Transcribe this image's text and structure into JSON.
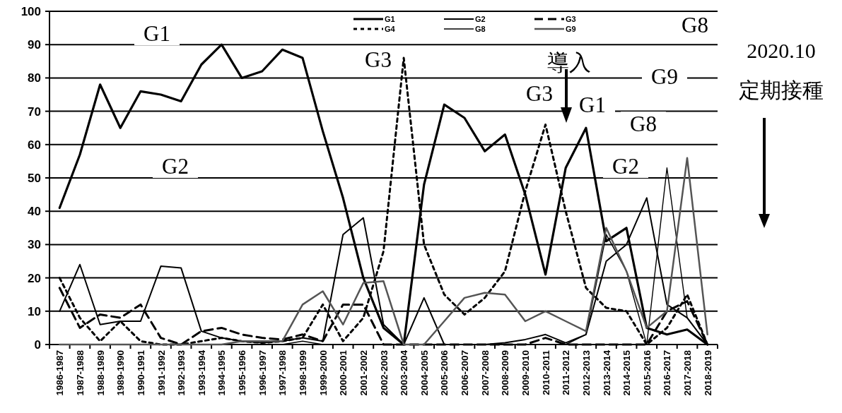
{
  "chart_data": {
    "type": "line",
    "categories": [
      "1986-1987",
      "1987-1988",
      "1988-1989",
      "1989-1990",
      "1990-1991",
      "1991-1992",
      "1992-1993",
      "1993-1994",
      "1994-1995",
      "1995-1996",
      "1996-1997",
      "1997-1998",
      "1998-1999",
      "1999-2000",
      "2000-2001",
      "2001-2002",
      "2002-2003",
      "2003-2004",
      "2004-2005",
      "2005-2006",
      "2006-2007",
      "2007-2008",
      "2008-2009",
      "2009-2010",
      "2010-2011",
      "2011-2012",
      "2012-2013",
      "2013-2014",
      "2014-2015",
      "2015-2016",
      "2016-2017",
      "2017-2018",
      "2018-2019"
    ],
    "ylim": [
      0,
      100
    ],
    "yticks": [
      0,
      10,
      20,
      30,
      40,
      50,
      60,
      70,
      80,
      90,
      100
    ],
    "grid": "y",
    "legend": "top",
    "series": [
      {
        "name": "G1",
        "color": "#000000",
        "line_style": "solid",
        "values": [
          41,
          57,
          78,
          65,
          76,
          75,
          73,
          84,
          90,
          80,
          82,
          88.5,
          86,
          64,
          44,
          20,
          5,
          0,
          48,
          72,
          68,
          58,
          63,
          45,
          21,
          53,
          65,
          31,
          35,
          5,
          3,
          4.5,
          0
        ]
      },
      {
        "name": "G2",
        "color": "#000000",
        "line_style": "solid",
        "values": [
          10,
          24,
          6,
          7,
          7,
          23.5,
          23,
          4,
          2,
          1,
          0.5,
          1,
          2,
          1,
          33,
          38,
          6,
          0,
          14,
          0,
          0,
          0,
          0.5,
          1.5,
          3,
          0.5,
          3,
          25,
          30,
          44,
          12,
          8,
          0
        ]
      },
      {
        "name": "G3",
        "color": "#000000",
        "line_style": "dashed",
        "values": [
          17,
          5,
          9,
          8,
          12,
          2,
          0,
          4,
          5,
          3,
          2,
          1.5,
          3,
          1,
          12,
          12,
          0,
          0,
          0,
          0,
          0,
          0,
          0,
          0,
          2,
          0,
          0,
          0,
          0,
          0,
          10,
          13,
          0
        ]
      },
      {
        "name": "G4",
        "color": "#000000",
        "line_style": "dotted",
        "values": [
          20,
          8,
          1,
          7,
          1,
          0,
          0,
          1,
          2,
          1,
          0.5,
          1,
          2,
          12,
          1,
          8,
          28,
          86,
          30,
          15,
          9,
          14,
          22,
          46,
          66,
          40,
          17,
          11,
          10,
          0,
          5,
          15,
          0
        ]
      },
      {
        "name": "G8",
        "color": "#000000",
        "line_style": "solid",
        "values": [
          0,
          0,
          0,
          0,
          0,
          0,
          0,
          0,
          0,
          0,
          0,
          0,
          1,
          0,
          0,
          0,
          0,
          0,
          0,
          0,
          0,
          0,
          0,
          0,
          0,
          0,
          3,
          33,
          22,
          0,
          53,
          8,
          0
        ]
      },
      {
        "name": "G9",
        "color": "#555555",
        "line_style": "solid",
        "values": [
          0,
          0,
          0,
          0,
          0,
          0,
          0,
          0,
          0,
          1,
          1,
          1,
          12,
          16,
          6,
          18.5,
          19,
          0,
          0,
          7,
          14,
          15.5,
          15,
          7,
          10,
          7,
          4,
          35,
          22,
          5,
          10,
          56,
          3
        ]
      }
    ],
    "annotations": [
      "G1",
      "G2",
      "G3",
      "G3",
      "G1",
      "G8",
      "G9",
      "G8",
      "G2",
      "導入",
      "2020.10",
      "定期接種"
    ]
  }
}
